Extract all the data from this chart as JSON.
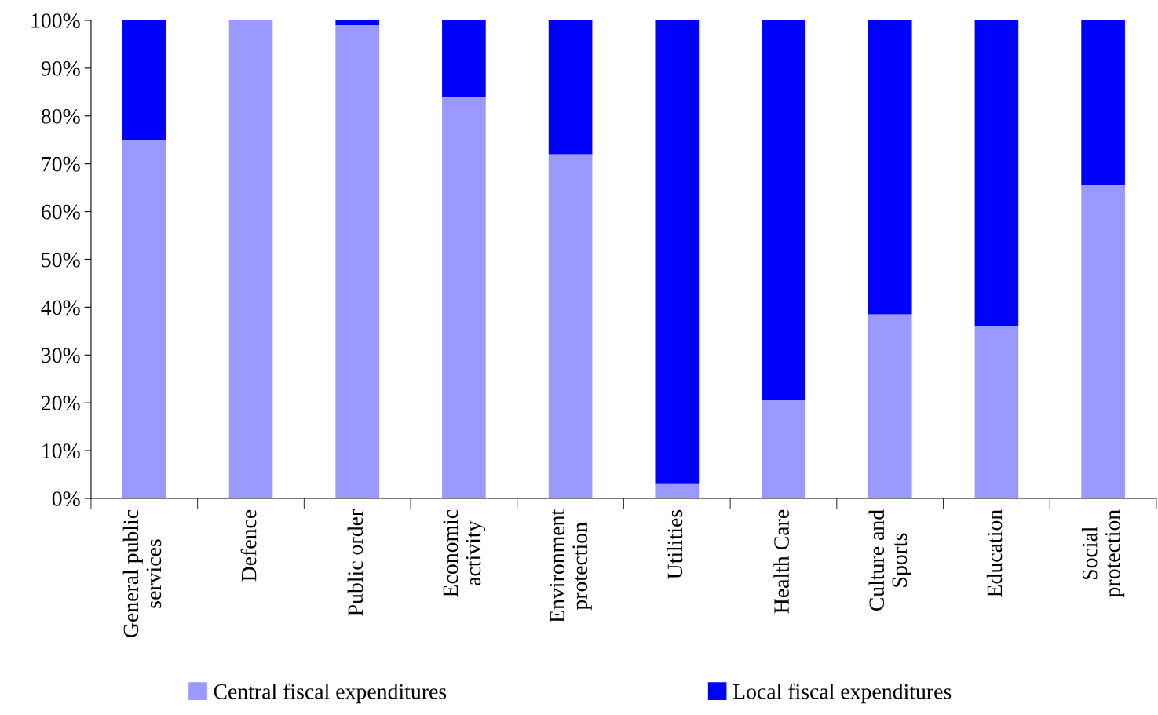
{
  "chart_data": {
    "type": "bar",
    "stacked": true,
    "categories": [
      "General public\nservices",
      "Defence",
      "Public order",
      "Economic\nactivity",
      "Environment\nprotection",
      "Utilities",
      "Health Care",
      "Culture and\nSports",
      "Education",
      "Social\nprotection"
    ],
    "series": [
      {
        "name": "Central fiscal expenditures",
        "color": "#9999ff",
        "values": [
          75,
          100,
          99,
          84,
          72,
          3,
          20.5,
          38.5,
          36,
          65.5
        ]
      },
      {
        "name": "Local fiscal expenditures",
        "color": "#0000ff",
        "values": [
          25,
          0,
          1,
          16,
          28,
          97,
          79.5,
          61.5,
          64,
          34.5
        ]
      }
    ],
    "ylim": [
      0,
      100
    ],
    "yticks": [
      {
        "value": 0,
        "label": "0%"
      },
      {
        "value": 10,
        "label": "10%"
      },
      {
        "value": 20,
        "label": "20%"
      },
      {
        "value": 30,
        "label": "30%"
      },
      {
        "value": 40,
        "label": "40%"
      },
      {
        "value": 50,
        "label": "50%"
      },
      {
        "value": 60,
        "label": "60%"
      },
      {
        "value": 70,
        "label": "70%"
      },
      {
        "value": 80,
        "label": "80%"
      },
      {
        "value": 90,
        "label": "90%"
      },
      {
        "value": 100,
        "label": "100%"
      }
    ],
    "grid": false,
    "legend": "bottom"
  }
}
